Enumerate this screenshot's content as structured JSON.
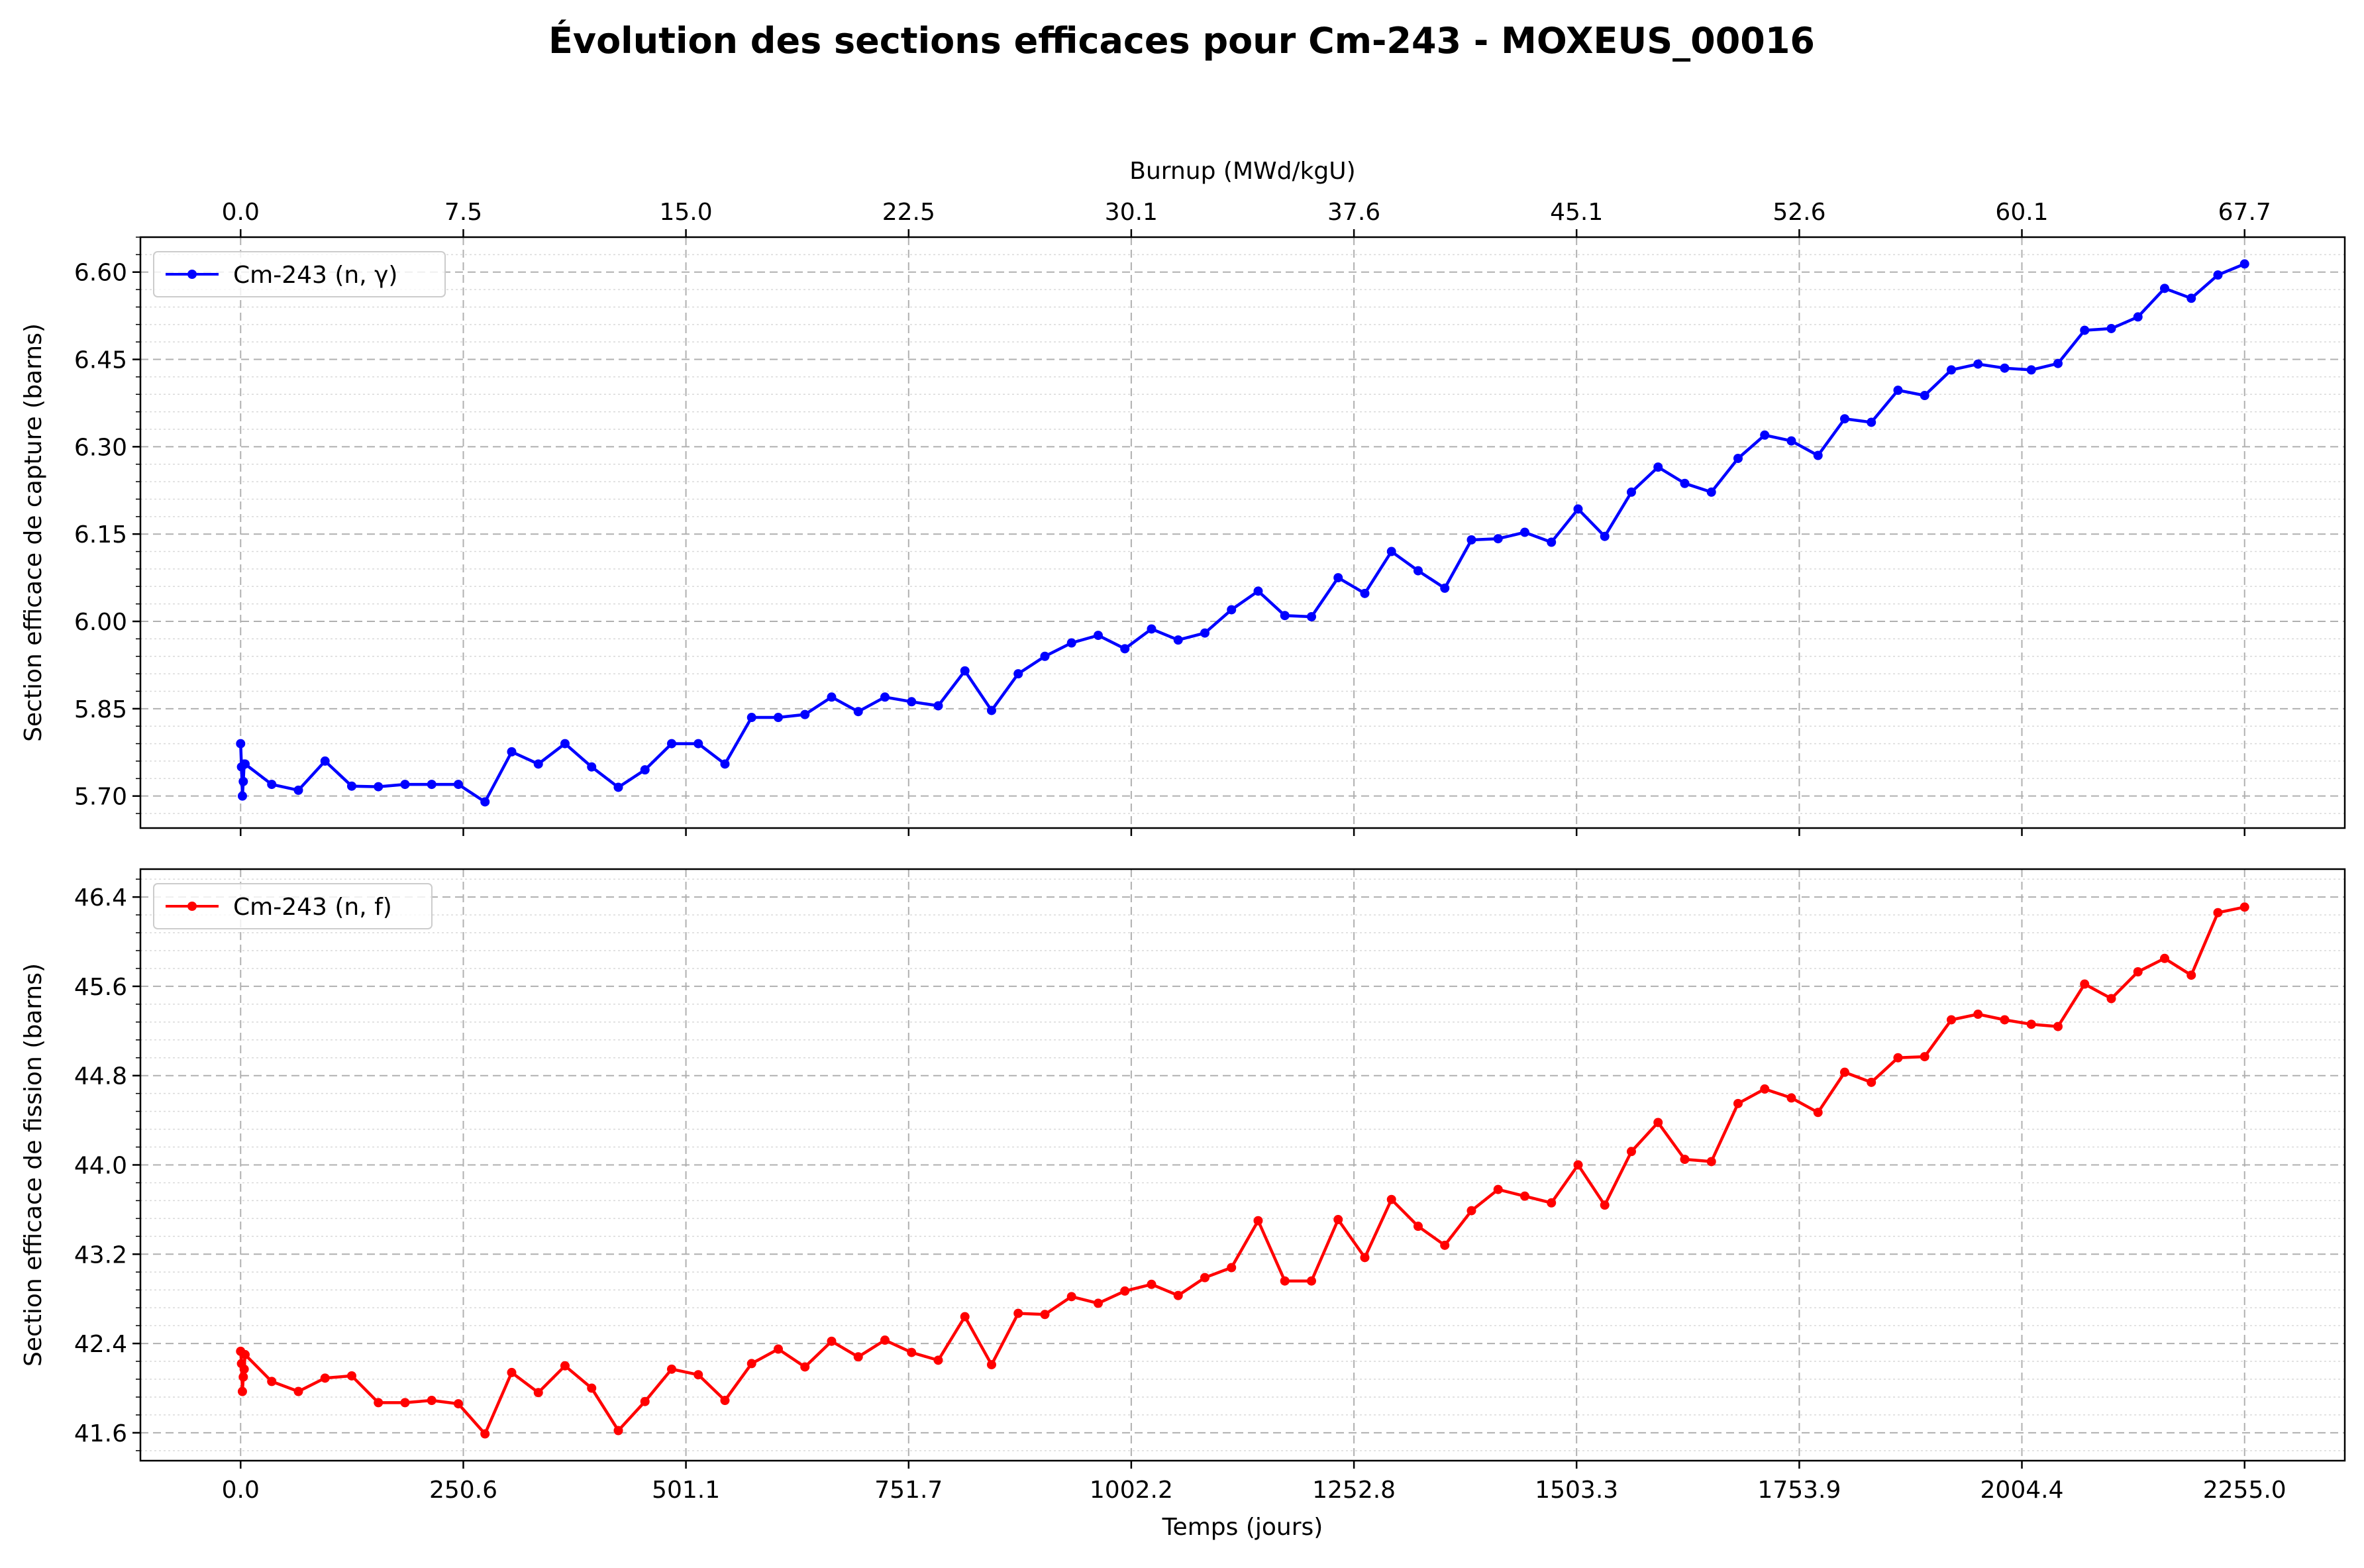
{
  "title": "Évolution des sections efficaces pour Cm-243 - MOXEUS_00016",
  "chart_data": [
    {
      "type": "line",
      "title": "",
      "xlabel": "",
      "ylabel": "Section efficace de capture (barns)",
      "top_xlabel": "Burnup (MWd/kgU)",
      "top_xticks": [
        "0.0",
        "7.5",
        "15.0",
        "22.5",
        "30.1",
        "37.6",
        "45.1",
        "52.6",
        "60.1",
        "67.7"
      ],
      "xticks": [
        0.0,
        250.6,
        501.1,
        751.7,
        1002.2,
        1252.8,
        1503.3,
        1753.9,
        2004.4,
        2255.0
      ],
      "yticks": [
        "5.70",
        "5.85",
        "6.00",
        "6.15",
        "6.30",
        "6.45",
        "6.60"
      ],
      "xlim": [
        -112.75,
        2367.75
      ],
      "ylim": [
        5.645,
        6.66
      ],
      "grid": true,
      "legend": "upper left",
      "color": "#0000ff",
      "series": [
        {
          "name": "Cm-243 (n, γ)",
          "x": [
            0,
            1,
            2,
            3,
            4,
            5,
            35,
            65,
            95,
            125,
            155,
            185,
            215,
            245,
            275,
            305,
            335,
            365,
            395,
            425,
            455,
            485,
            515,
            545,
            575,
            605,
            635,
            665,
            695,
            725,
            755,
            785,
            815,
            845,
            875,
            905,
            935,
            965,
            995,
            1025,
            1055,
            1085,
            1115,
            1145,
            1175,
            1205,
            1235,
            1265,
            1295,
            1325,
            1355,
            1385,
            1415,
            1445,
            1475,
            1505,
            1535,
            1565,
            1595,
            1625,
            1655,
            1685,
            1715,
            1745,
            1775,
            1805,
            1835,
            1865,
            1895,
            1925,
            1955,
            1985,
            2015,
            2045,
            2075,
            2105,
            2135,
            2165,
            2195,
            2225,
            2255
          ],
          "y": [
            5.79,
            5.75,
            5.7,
            5.725,
            5.755,
            5.755,
            5.72,
            5.71,
            5.76,
            5.717,
            5.716,
            5.72,
            5.72,
            5.72,
            5.69,
            5.776,
            5.755,
            5.79,
            5.75,
            5.715,
            5.745,
            5.79,
            5.79,
            5.755,
            5.835,
            5.835,
            5.84,
            5.87,
            5.845,
            5.87,
            5.862,
            5.855,
            5.915,
            5.847,
            5.91,
            5.94,
            5.963,
            5.976,
            5.953,
            5.987,
            5.968,
            5.98,
            6.02,
            6.052,
            6.01,
            6.008,
            6.075,
            6.048,
            6.12,
            6.087,
            6.057,
            6.14,
            6.142,
            6.153,
            6.136,
            6.193,
            6.146,
            6.222,
            6.265,
            6.237,
            6.222,
            6.28,
            6.32,
            6.31,
            6.285,
            6.348,
            6.342,
            6.397,
            6.388,
            6.432,
            6.442,
            6.435,
            6.432,
            6.443,
            6.5,
            6.503,
            6.523,
            6.572,
            6.555,
            6.595,
            6.614
          ]
        }
      ]
    },
    {
      "type": "line",
      "title": "",
      "xlabel": "Temps (jours)",
      "ylabel": "Section efficace de fission (barns)",
      "xticks": [
        "0.0",
        "250.6",
        "501.1",
        "751.7",
        "1002.2",
        "1252.8",
        "1503.3",
        "1753.9",
        "2004.4",
        "2255.0"
      ],
      "yticks": [
        "41.6",
        "42.4",
        "43.2",
        "44.0",
        "44.8",
        "45.6",
        "46.4"
      ],
      "xlim": [
        -112.75,
        2367.75
      ],
      "ylim": [
        41.35,
        46.65
      ],
      "grid": true,
      "legend": "upper left",
      "color": "#ff0000",
      "series": [
        {
          "name": "Cm-243 (n, f)",
          "x": [
            0,
            1,
            2,
            3,
            4,
            5,
            35,
            65,
            95,
            125,
            155,
            185,
            215,
            245,
            275,
            305,
            335,
            365,
            395,
            425,
            455,
            485,
            515,
            545,
            575,
            605,
            635,
            665,
            695,
            725,
            755,
            785,
            815,
            845,
            875,
            905,
            935,
            965,
            995,
            1025,
            1055,
            1085,
            1115,
            1145,
            1175,
            1205,
            1235,
            1265,
            1295,
            1325,
            1355,
            1385,
            1415,
            1445,
            1475,
            1505,
            1535,
            1565,
            1595,
            1625,
            1655,
            1685,
            1715,
            1745,
            1775,
            1805,
            1835,
            1865,
            1895,
            1925,
            1955,
            1985,
            2015,
            2045,
            2075,
            2105,
            2135,
            2165,
            2195,
            2225,
            2255
          ],
          "y": [
            42.33,
            42.22,
            41.97,
            42.1,
            42.17,
            42.3,
            42.06,
            41.97,
            42.09,
            42.11,
            41.87,
            41.87,
            41.89,
            41.86,
            41.59,
            42.14,
            41.96,
            42.2,
            42.0,
            41.62,
            41.88,
            42.17,
            42.12,
            41.89,
            42.22,
            42.35,
            42.19,
            42.42,
            42.28,
            42.43,
            42.32,
            42.25,
            42.64,
            42.21,
            42.67,
            42.66,
            42.82,
            42.76,
            42.87,
            42.93,
            42.83,
            42.99,
            43.08,
            43.5,
            42.96,
            42.96,
            43.51,
            43.17,
            43.69,
            43.45,
            43.28,
            43.59,
            43.78,
            43.72,
            43.66,
            44.0,
            43.64,
            44.12,
            44.38,
            44.05,
            44.03,
            44.55,
            44.68,
            44.6,
            44.47,
            44.83,
            44.74,
            44.96,
            44.97,
            45.3,
            45.35,
            45.3,
            45.26,
            45.24,
            45.62,
            45.49,
            45.73,
            45.85,
            45.7,
            46.26,
            46.31
          ]
        }
      ]
    }
  ]
}
